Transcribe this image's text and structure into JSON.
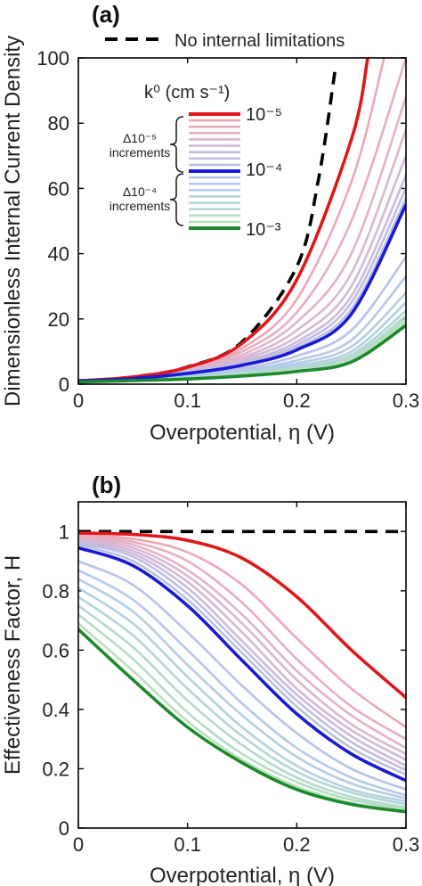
{
  "chart_data": [
    {
      "panel": "(a)",
      "type": "line",
      "xlabel": "Overpotential, η (V)",
      "ylabel": "Dimensionless Internal Current Density",
      "xlim": [
        0,
        0.3
      ],
      "ylim": [
        0,
        100
      ],
      "xticks": [
        "0",
        "0.1",
        "0.2",
        "0.3"
      ],
      "yticks": [
        "0",
        "20",
        "40",
        "60",
        "80",
        "100"
      ],
      "reference_label": "No internal limitations",
      "legend_title": "k⁰ (cm s⁻¹)",
      "legend_labels": {
        "top": "10⁻⁵",
        "mid": "10⁻⁴",
        "bottom": "10⁻³"
      },
      "legend_notes": [
        "Δ10⁻⁵",
        "increments",
        "Δ10⁻⁴",
        "increments"
      ],
      "series": [
        {
          "name": "No internal limitations",
          "color": "#000000",
          "dashed": true,
          "x": [
            0,
            0.05,
            0.1,
            0.15,
            0.2,
            0.22,
            0.235
          ],
          "y": [
            1,
            2.2,
            5.3,
            13.0,
            36.0,
            63.0,
            96.0
          ]
        },
        {
          "name": "10⁻⁵",
          "color": "#e0161a",
          "x": [
            0,
            0.05,
            0.1,
            0.15,
            0.2,
            0.25,
            0.265
          ],
          "y": [
            1,
            2.2,
            5.2,
            12.5,
            32.0,
            75.0,
            100.0
          ]
        },
        {
          "color": "#eda8b4",
          "x": [
            0,
            0.05,
            0.1,
            0.15,
            0.2,
            0.25,
            0.28
          ],
          "y": [
            1,
            2.1,
            4.9,
            11.0,
            26.0,
            62.0,
            100.0
          ]
        },
        {
          "color": "#e8aec0",
          "x": [
            0,
            0.05,
            0.1,
            0.15,
            0.2,
            0.25,
            0.3
          ],
          "y": [
            1,
            2.1,
            4.7,
            10.0,
            22.0,
            50.0,
            100.0
          ]
        },
        {
          "color": "#e2b3c8",
          "x": [
            0,
            0.05,
            0.1,
            0.15,
            0.2,
            0.25,
            0.3
          ],
          "y": [
            1,
            2.0,
            4.5,
            9.0,
            19.0,
            40.0,
            88.0
          ]
        },
        {
          "color": "#dbb6cf",
          "x": [
            0,
            0.05,
            0.1,
            0.15,
            0.2,
            0.25,
            0.3
          ],
          "y": [
            1,
            2.0,
            4.3,
            8.2,
            16.5,
            34.0,
            78.0
          ]
        },
        {
          "color": "#d3b8d6",
          "x": [
            0,
            0.05,
            0.1,
            0.15,
            0.2,
            0.25,
            0.3
          ],
          "y": [
            1,
            1.9,
            4.1,
            7.6,
            14.5,
            30.0,
            70.0
          ]
        },
        {
          "color": "#cbbadb",
          "x": [
            0,
            0.05,
            0.1,
            0.15,
            0.2,
            0.25,
            0.3
          ],
          "y": [
            1,
            1.9,
            3.9,
            7.0,
            13.0,
            27.0,
            64.0
          ]
        },
        {
          "color": "#c2bce0",
          "x": [
            0,
            0.05,
            0.1,
            0.15,
            0.2,
            0.25,
            0.3
          ],
          "y": [
            1,
            1.8,
            3.7,
            6.5,
            12.0,
            25.0,
            60.0
          ]
        },
        {
          "color": "#bac0e5",
          "x": [
            0,
            0.05,
            0.1,
            0.15,
            0.2,
            0.25,
            0.3
          ],
          "y": [
            1,
            1.8,
            3.5,
            6.1,
            11.2,
            23.0,
            57.0
          ]
        },
        {
          "name": "10⁻⁴",
          "color": "#1a1ad6",
          "x": [
            0,
            0.05,
            0.1,
            0.15,
            0.2,
            0.25,
            0.3
          ],
          "y": [
            1,
            1.7,
            3.3,
            5.8,
            10.5,
            21.5,
            55.0
          ]
        },
        {
          "color": "#b8c2ea",
          "x": [
            0,
            0.05,
            0.1,
            0.15,
            0.2,
            0.25,
            0.3
          ],
          "y": [
            1,
            1.6,
            2.9,
            4.9,
            8.6,
            16.5,
            39.0
          ]
        },
        {
          "color": "#b4c8e8",
          "x": [
            0,
            0.05,
            0.1,
            0.15,
            0.2,
            0.25,
            0.3
          ],
          "y": [
            1,
            1.5,
            2.6,
            4.3,
            7.3,
            13.5,
            33.0
          ]
        },
        {
          "color": "#b2cde4",
          "x": [
            0,
            0.05,
            0.1,
            0.15,
            0.2,
            0.25,
            0.3
          ],
          "y": [
            1,
            1.5,
            2.4,
            3.9,
            6.4,
            11.5,
            28.0
          ]
        },
        {
          "color": "#b1d2de",
          "x": [
            0,
            0.05,
            0.1,
            0.15,
            0.2,
            0.25,
            0.3
          ],
          "y": [
            1,
            1.4,
            2.2,
            3.5,
            5.7,
            10.0,
            25.0
          ]
        },
        {
          "color": "#b1d6d6",
          "x": [
            0,
            0.05,
            0.1,
            0.15,
            0.2,
            0.25,
            0.3
          ],
          "y": [
            1,
            1.4,
            2.1,
            3.2,
            5.1,
            9.0,
            22.5
          ]
        },
        {
          "color": "#b3dace",
          "x": [
            0,
            0.05,
            0.1,
            0.15,
            0.2,
            0.25,
            0.3
          ],
          "y": [
            1,
            1.3,
            2.0,
            3.0,
            4.7,
            8.3,
            21.0
          ]
        },
        {
          "color": "#b5ddc5",
          "x": [
            0,
            0.05,
            0.1,
            0.15,
            0.2,
            0.25,
            0.3
          ],
          "y": [
            1,
            1.3,
            1.9,
            2.8,
            4.4,
            7.7,
            20.0
          ]
        },
        {
          "color": "#b8e0bb",
          "x": [
            0,
            0.05,
            0.1,
            0.15,
            0.2,
            0.25,
            0.3
          ],
          "y": [
            1,
            1.25,
            1.8,
            2.65,
            4.1,
            7.2,
            19.0
          ]
        },
        {
          "name": "10⁻³",
          "color": "#1c8a2a",
          "x": [
            0,
            0.05,
            0.1,
            0.15,
            0.2,
            0.25,
            0.3
          ],
          "y": [
            0.7,
            1.1,
            1.6,
            2.5,
            3.9,
            6.8,
            18.0
          ]
        }
      ]
    },
    {
      "panel": "(b)",
      "type": "line",
      "xlabel": "Overpotential, η (V)",
      "ylabel": "Effectiveness Factor, H",
      "xlim": [
        0,
        0.3
      ],
      "ylim": [
        0,
        1.1
      ],
      "xticks": [
        "0",
        "0.1",
        "0.2",
        "0.3"
      ],
      "yticks": [
        "0",
        "0.2",
        "0.4",
        "0.6",
        "0.8",
        "1"
      ],
      "series": [
        {
          "name": "No internal limitations",
          "color": "#000000",
          "dashed": true,
          "x": [
            0,
            0.3
          ],
          "y": [
            1,
            1
          ]
        },
        {
          "name": "10⁻⁵",
          "color": "#e0161a",
          "x": [
            0,
            0.05,
            0.1,
            0.15,
            0.2,
            0.25,
            0.3
          ],
          "y": [
            0.995,
            0.99,
            0.97,
            0.91,
            0.78,
            0.6,
            0.44
          ]
        },
        {
          "color": "#eda8b4",
          "x": [
            0,
            0.05,
            0.1,
            0.15,
            0.2,
            0.25,
            0.3
          ],
          "y": [
            0.99,
            0.975,
            0.93,
            0.82,
            0.64,
            0.47,
            0.34
          ]
        },
        {
          "color": "#e8aec0",
          "x": [
            0,
            0.05,
            0.1,
            0.15,
            0.2,
            0.25,
            0.3
          ],
          "y": [
            0.985,
            0.965,
            0.9,
            0.76,
            0.57,
            0.41,
            0.3
          ]
        },
        {
          "color": "#e2b3c8",
          "x": [
            0,
            0.05,
            0.1,
            0.15,
            0.2,
            0.25,
            0.3
          ],
          "y": [
            0.98,
            0.955,
            0.87,
            0.72,
            0.53,
            0.38,
            0.27
          ]
        },
        {
          "color": "#dbb6cf",
          "x": [
            0,
            0.05,
            0.1,
            0.15,
            0.2,
            0.25,
            0.3
          ],
          "y": [
            0.975,
            0.945,
            0.85,
            0.69,
            0.5,
            0.35,
            0.25
          ]
        },
        {
          "color": "#d3b8d6",
          "x": [
            0,
            0.05,
            0.1,
            0.15,
            0.2,
            0.25,
            0.3
          ],
          "y": [
            0.97,
            0.935,
            0.83,
            0.66,
            0.47,
            0.33,
            0.23
          ]
        },
        {
          "color": "#cbbadb",
          "x": [
            0,
            0.05,
            0.1,
            0.15,
            0.2,
            0.25,
            0.3
          ],
          "y": [
            0.965,
            0.925,
            0.81,
            0.63,
            0.45,
            0.31,
            0.21
          ]
        },
        {
          "color": "#c2bce0",
          "x": [
            0,
            0.05,
            0.1,
            0.15,
            0.2,
            0.25,
            0.3
          ],
          "y": [
            0.96,
            0.915,
            0.79,
            0.61,
            0.43,
            0.29,
            0.195
          ]
        },
        {
          "color": "#bac0e5",
          "x": [
            0,
            0.05,
            0.1,
            0.15,
            0.2,
            0.25,
            0.3
          ],
          "y": [
            0.955,
            0.9,
            0.77,
            0.59,
            0.41,
            0.27,
            0.18
          ]
        },
        {
          "name": "10⁻⁴",
          "color": "#1a1ad6",
          "x": [
            0,
            0.05,
            0.1,
            0.15,
            0.2,
            0.25,
            0.3
          ],
          "y": [
            0.945,
            0.885,
            0.75,
            0.565,
            0.385,
            0.25,
            0.16
          ]
        },
        {
          "color": "#b8c2ea",
          "x": [
            0,
            0.05,
            0.1,
            0.15,
            0.2,
            0.25,
            0.3
          ],
          "y": [
            0.9,
            0.82,
            0.66,
            0.48,
            0.32,
            0.2,
            0.13
          ]
        },
        {
          "color": "#b4c8e8",
          "x": [
            0,
            0.05,
            0.1,
            0.15,
            0.2,
            0.25,
            0.3
          ],
          "y": [
            0.87,
            0.77,
            0.6,
            0.42,
            0.27,
            0.17,
            0.11
          ]
        },
        {
          "color": "#b2cde4",
          "x": [
            0,
            0.05,
            0.1,
            0.15,
            0.2,
            0.25,
            0.3
          ],
          "y": [
            0.84,
            0.73,
            0.55,
            0.38,
            0.24,
            0.15,
            0.1
          ]
        },
        {
          "color": "#b1d2de",
          "x": [
            0,
            0.05,
            0.1,
            0.15,
            0.2,
            0.25,
            0.3
          ],
          "y": [
            0.81,
            0.69,
            0.51,
            0.34,
            0.21,
            0.13,
            0.09
          ]
        },
        {
          "color": "#b1d6d6",
          "x": [
            0,
            0.05,
            0.1,
            0.15,
            0.2,
            0.25,
            0.3
          ],
          "y": [
            0.78,
            0.65,
            0.47,
            0.31,
            0.19,
            0.12,
            0.08
          ]
        },
        {
          "color": "#b3dace",
          "x": [
            0,
            0.05,
            0.1,
            0.15,
            0.2,
            0.25,
            0.3
          ],
          "y": [
            0.75,
            0.61,
            0.43,
            0.28,
            0.17,
            0.105,
            0.07
          ]
        },
        {
          "color": "#b5ddc5",
          "x": [
            0,
            0.05,
            0.1,
            0.15,
            0.2,
            0.25,
            0.3
          ],
          "y": [
            0.72,
            0.57,
            0.39,
            0.25,
            0.155,
            0.095,
            0.065
          ]
        },
        {
          "color": "#b8e0bb",
          "x": [
            0,
            0.05,
            0.1,
            0.15,
            0.2,
            0.25,
            0.3
          ],
          "y": [
            0.69,
            0.53,
            0.36,
            0.23,
            0.14,
            0.085,
            0.06
          ]
        },
        {
          "name": "10⁻³",
          "color": "#1c8a2a",
          "x": [
            0,
            0.05,
            0.1,
            0.15,
            0.2,
            0.25,
            0.3
          ],
          "y": [
            0.67,
            0.5,
            0.34,
            0.22,
            0.13,
            0.08,
            0.055
          ]
        }
      ]
    }
  ]
}
